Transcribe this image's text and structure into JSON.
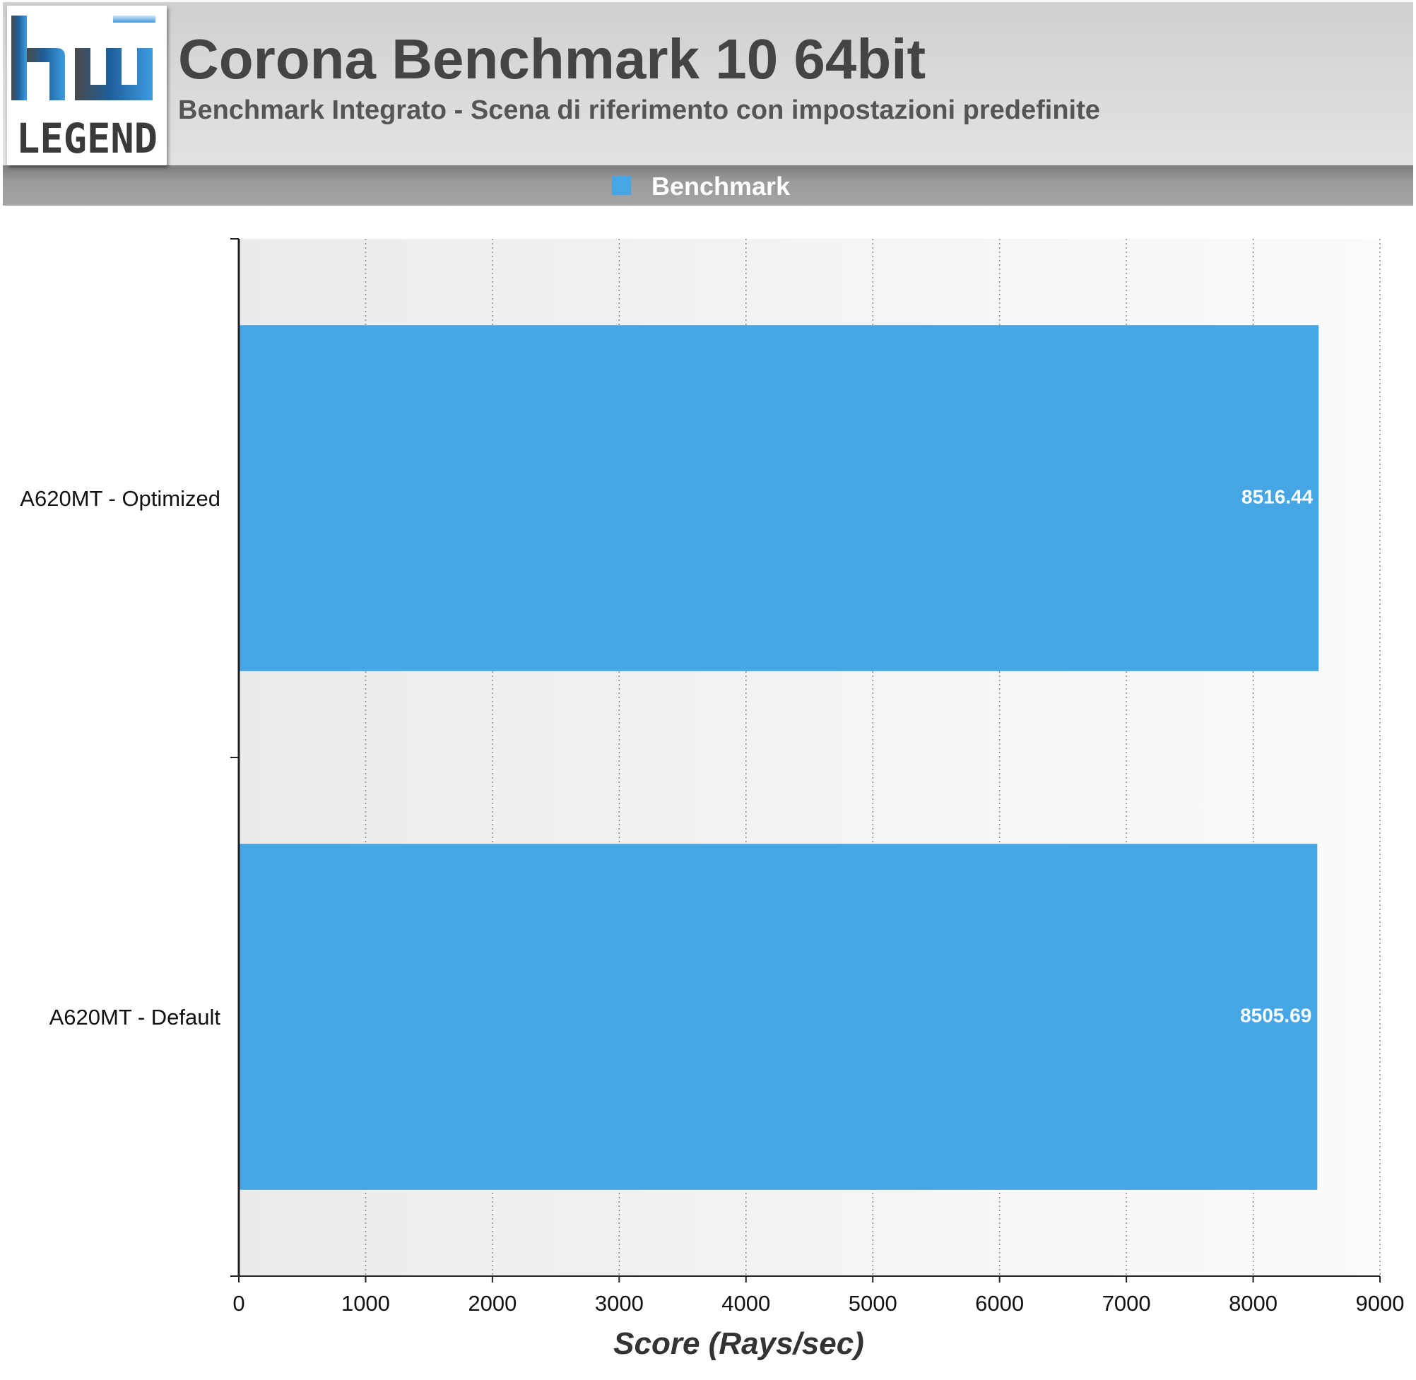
{
  "header": {
    "logo_top": "hw",
    "logo_bottom": "LEGEND",
    "title": "Corona Benchmark 10 64bit",
    "subtitle": "Benchmark Integrato - Scena di riferimento con impostazioni predefinite"
  },
  "legend": {
    "items": [
      {
        "label": "Benchmark",
        "color": "#46a5e5"
      }
    ]
  },
  "chart_data": {
    "type": "bar",
    "orientation": "horizontal",
    "categories": [
      "A620MT - Optimized",
      "A620MT - Default"
    ],
    "series": [
      {
        "name": "Benchmark",
        "values": [
          8516.44,
          8505.69
        ],
        "color": "#46a5e5"
      }
    ],
    "data_labels": [
      "8516.44",
      "8505.69"
    ],
    "xlabel": "Score (Rays/sec)",
    "ylabel": "",
    "xlim": [
      0,
      9000
    ],
    "xticks": [
      0,
      1000,
      2000,
      3000,
      4000,
      5000,
      6000,
      7000,
      8000,
      9000
    ],
    "grid": "vertical dotted",
    "legend_position": "top"
  }
}
